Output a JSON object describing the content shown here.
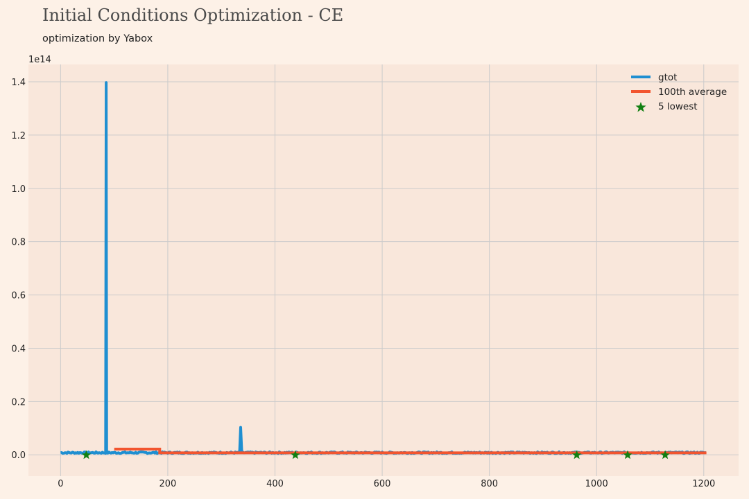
{
  "title": "Initial Conditions Optimization - CE",
  "subtitle": "optimization by Yabox",
  "chart_data": {
    "type": "line",
    "offset_label": "1e14",
    "xlim": [
      -60,
      1265
    ],
    "ylim": [
      -0.08,
      1.465
    ],
    "x_ticks": [
      0,
      200,
      400,
      600,
      800,
      1000,
      1200
    ],
    "y_ticks": [
      0.0,
      0.2,
      0.4,
      0.6,
      0.8,
      1.0,
      1.2,
      1.4
    ],
    "y_tick_labels": [
      "0.0",
      "0.2",
      "0.4",
      "0.6",
      "0.8",
      "1.0",
      "1.2",
      "1.4"
    ],
    "grid": true,
    "legend_position": "top-right",
    "series": [
      {
        "name": "gtot",
        "kind": "line",
        "color": "#1f8fd1",
        "baseline": 0.008,
        "noise": 0.003,
        "x_range": [
          0,
          1205
        ],
        "spikes": [
          {
            "x": 85,
            "y": 1.397
          },
          {
            "x": 336,
            "y": 0.103
          }
        ]
      },
      {
        "name": "100th average",
        "kind": "step",
        "color": "#f2552f",
        "x": [
          100,
          185,
          185,
          1205
        ],
        "y": [
          0.0215,
          0.0215,
          0.0075,
          0.0075
        ]
      },
      {
        "name": "5 lowest",
        "kind": "scatter",
        "marker": "star",
        "color": "#128012",
        "x": [
          48,
          438,
          963,
          1058,
          1128
        ],
        "y": [
          -0.001,
          -0.001,
          -0.001,
          -0.001,
          -0.001
        ]
      }
    ]
  }
}
